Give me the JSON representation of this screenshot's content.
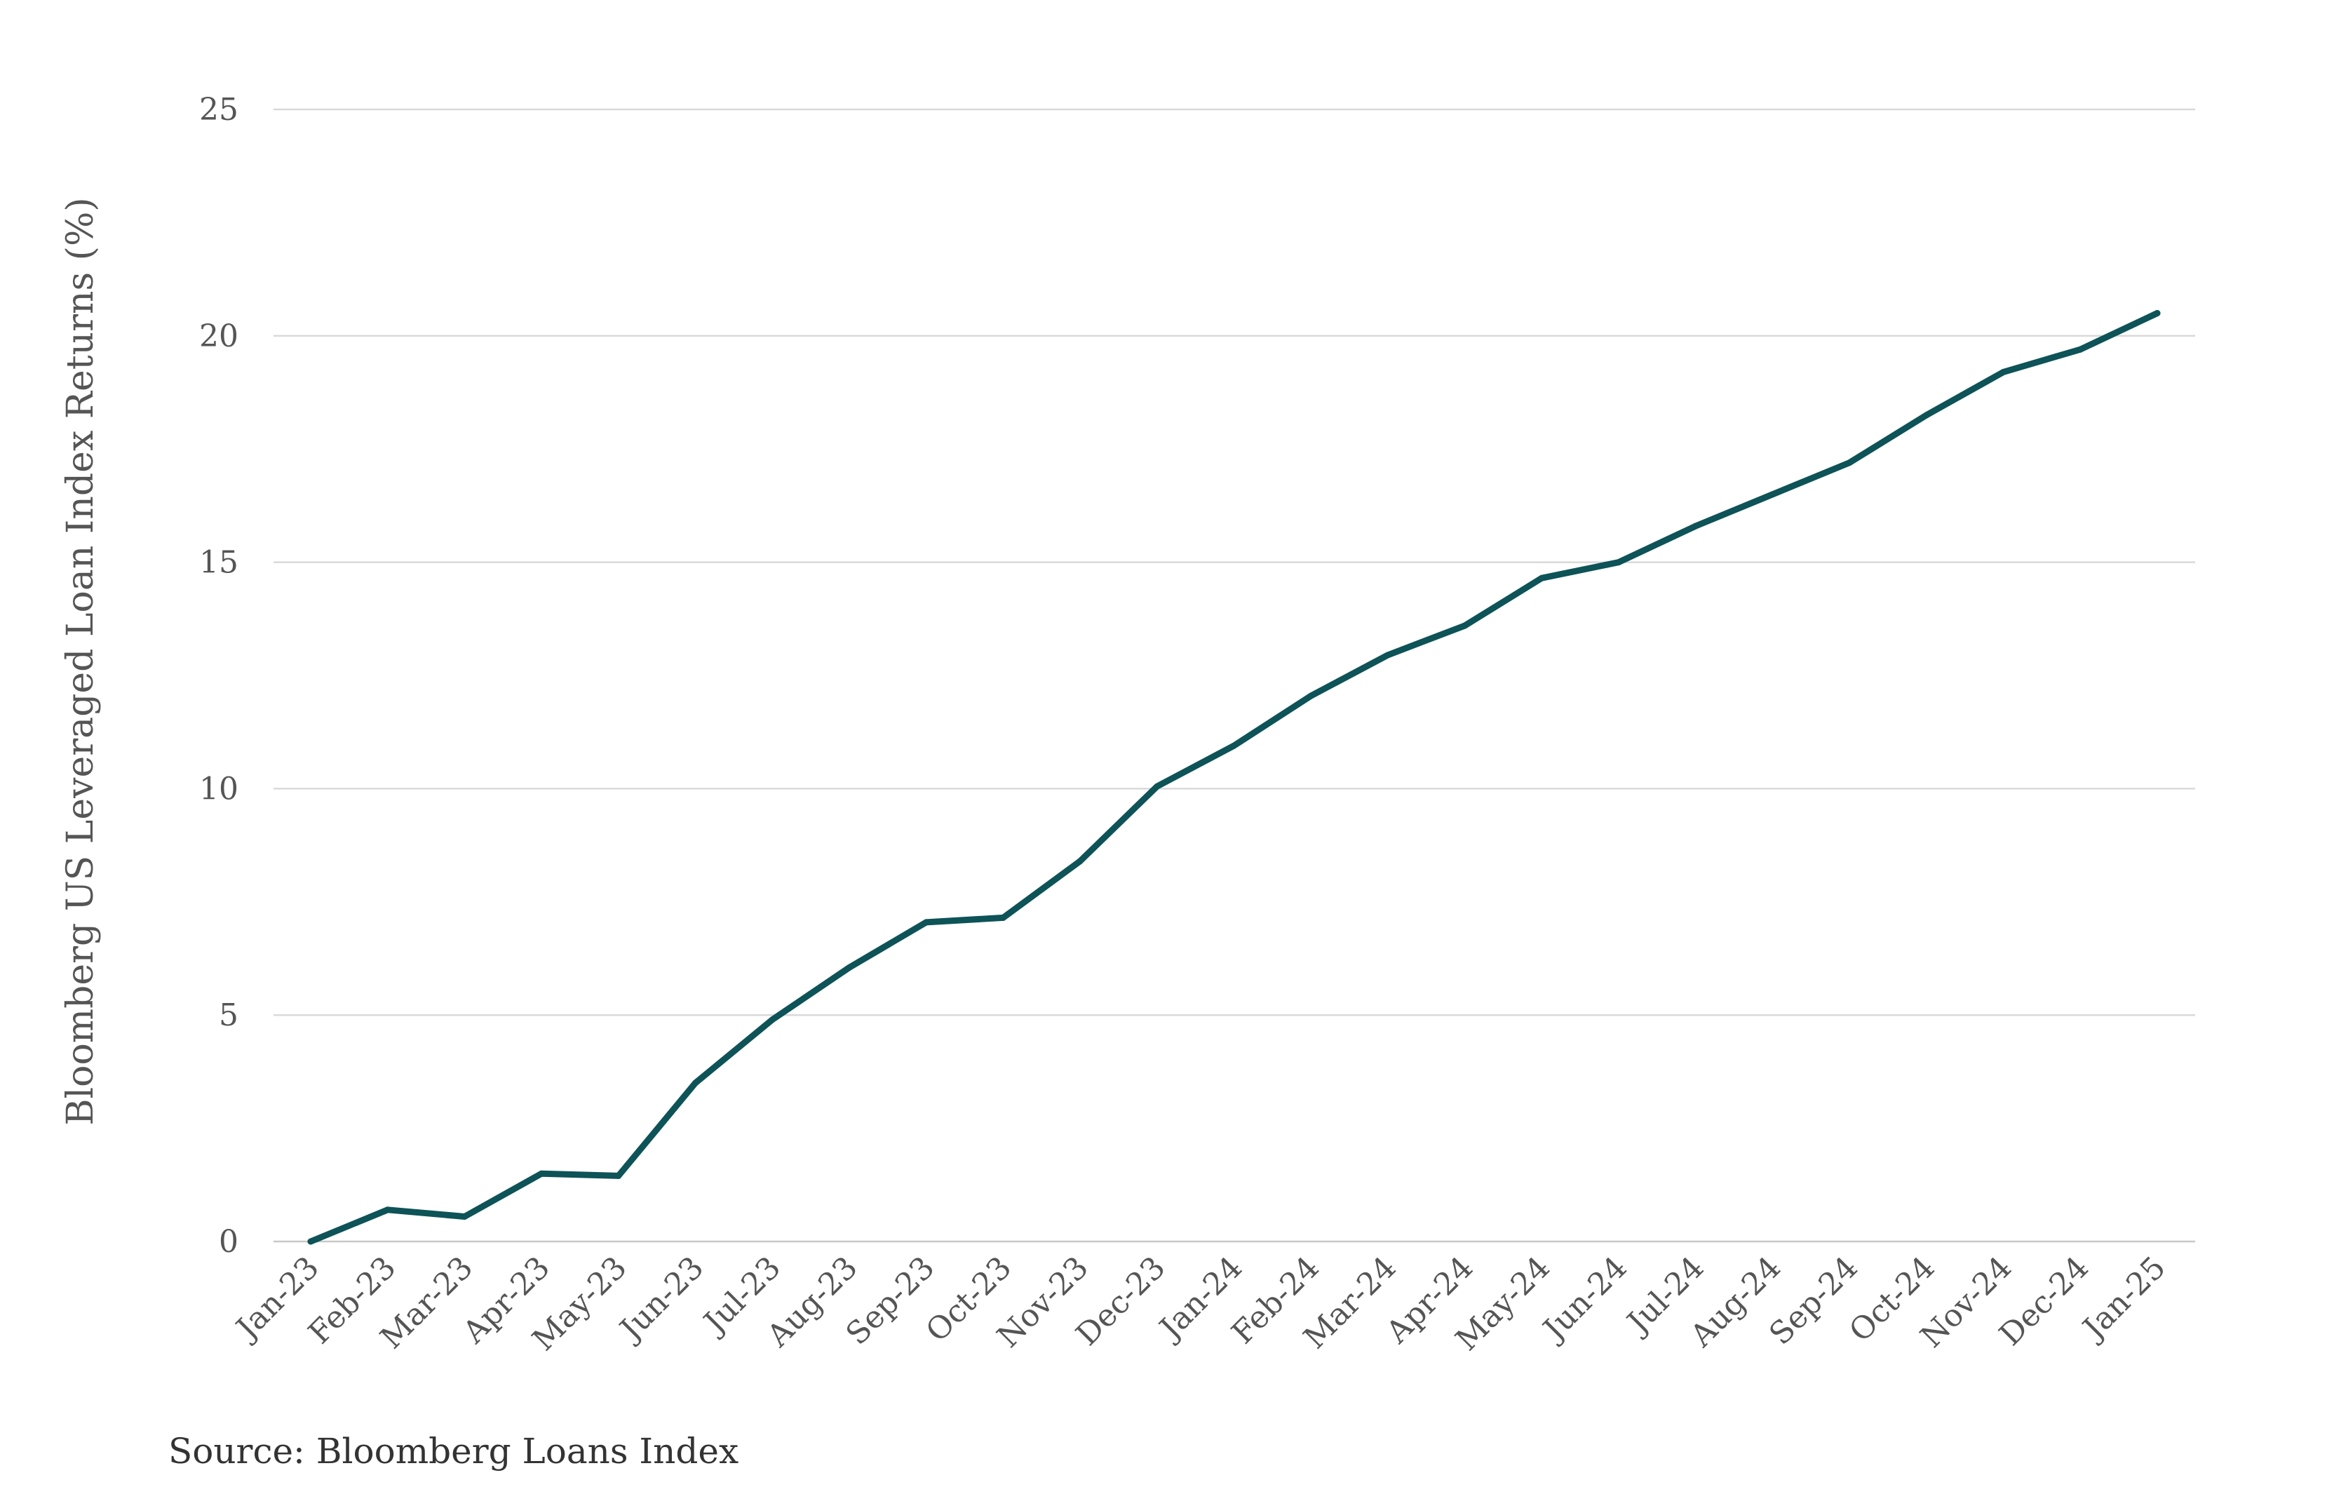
{
  "chart_data": {
    "type": "line",
    "title": "",
    "xlabel": "",
    "ylabel": "Bloomberg US Leveraged Loan Index Returns (%)",
    "ylim": [
      0,
      25
    ],
    "yticks": [
      0,
      5,
      10,
      15,
      20,
      25
    ],
    "grid": "horizontal",
    "categories": [
      "Jan-23",
      "Feb-23",
      "Mar-23",
      "Apr-23",
      "May-23",
      "Jun-23",
      "Jul-23",
      "Aug-23",
      "Sep-23",
      "Oct-23",
      "Nov-23",
      "Dec-23",
      "Jan-24",
      "Feb-24",
      "Mar-24",
      "Apr-24",
      "May-24",
      "Jun-24",
      "Jul-24",
      "Aug-24",
      "Sep-24",
      "Oct-24",
      "Nov-24",
      "Dec-24",
      "Jan-25"
    ],
    "series": [
      {
        "name": "",
        "color": "#0d5357",
        "values": [
          0.0,
          0.7,
          0.55,
          1.5,
          1.45,
          3.5,
          4.9,
          6.05,
          7.05,
          7.15,
          8.4,
          10.05,
          10.95,
          12.05,
          12.95,
          13.6,
          14.65,
          15.0,
          15.8,
          16.5,
          17.2,
          18.25,
          19.2,
          19.7,
          20.5
        ]
      }
    ]
  },
  "source_note": "Source: Bloomberg Loans Index"
}
